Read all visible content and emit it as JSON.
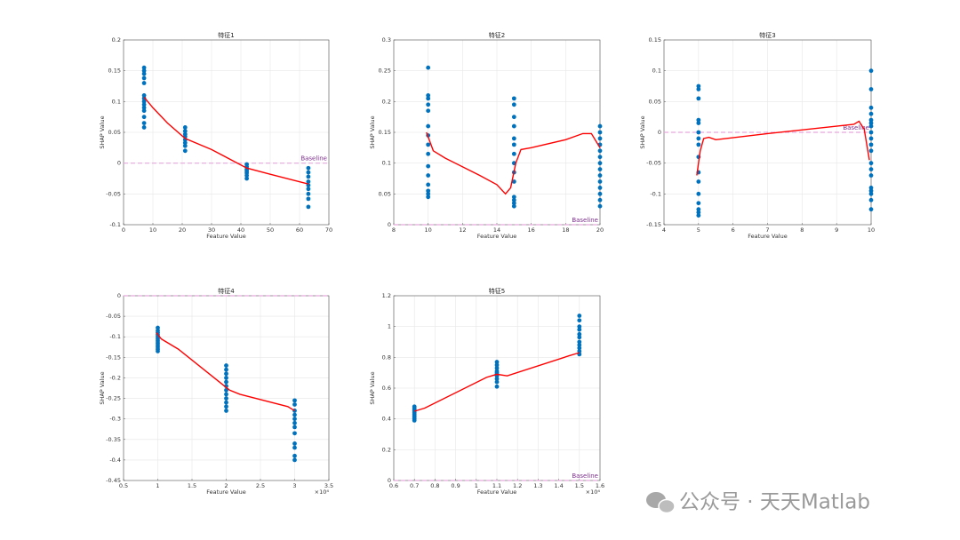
{
  "watermark": "公众号 · 天天Matlab",
  "chart_data": [
    {
      "type": "scatter",
      "title": "特征1",
      "xlabel": "Feature Value",
      "ylabel": "SHAP Value",
      "xlim": [
        0,
        70
      ],
      "xticks": [
        0,
        10,
        20,
        30,
        40,
        50,
        60,
        70
      ],
      "ylim": [
        -0.1,
        0.2
      ],
      "yticks": [
        -0.1,
        -0.05,
        0,
        0.05,
        0.1,
        0.15,
        0.2
      ],
      "grid": true,
      "scatter": {
        "color": "#0072bd",
        "x": [
          7,
          7,
          7,
          7,
          7,
          7,
          7,
          7,
          7,
          7,
          7,
          7,
          7,
          7,
          21,
          21,
          21,
          21,
          21,
          21,
          21,
          21,
          42,
          42,
          42,
          42,
          42,
          42,
          42,
          63,
          63,
          63,
          63,
          63,
          63,
          63,
          63,
          63
        ],
        "y": [
          0.155,
          0.15,
          0.145,
          0.138,
          0.13,
          0.11,
          0.105,
          0.1,
          0.095,
          0.09,
          0.085,
          0.075,
          0.065,
          0.058,
          0.058,
          0.052,
          0.047,
          0.043,
          0.038,
          0.033,
          0.028,
          0.02,
          -0.002,
          -0.006,
          -0.01,
          -0.013,
          -0.016,
          -0.02,
          -0.025,
          -0.008,
          -0.015,
          -0.022,
          -0.03,
          -0.036,
          -0.042,
          -0.05,
          -0.058,
          -0.071
        ]
      },
      "curve": {
        "color": "#ff0000",
        "x": [
          7,
          10,
          15,
          21,
          30,
          42,
          50,
          63
        ],
        "y": [
          0.107,
          0.09,
          0.065,
          0.04,
          0.022,
          -0.008,
          -0.018,
          -0.034
        ]
      },
      "baseline": {
        "value": 0,
        "label": "Baseline",
        "line_color": "#e6a8dc",
        "label_color": "#7e2f8e"
      }
    },
    {
      "type": "scatter",
      "title": "特征2",
      "xlabel": "Feature Value",
      "ylabel": "SHAP Value",
      "xlim": [
        8,
        20
      ],
      "xticks": [
        8,
        10,
        12,
        14,
        16,
        18,
        20
      ],
      "ylim": [
        0,
        0.3
      ],
      "yticks": [
        0,
        0.05,
        0.1,
        0.15,
        0.2,
        0.25,
        0.3
      ],
      "grid": true,
      "scatter": {
        "color": "#0072bd",
        "x": [
          10,
          10,
          10,
          10,
          10,
          10,
          10,
          10,
          10,
          10,
          10,
          10,
          10,
          10,
          10,
          15,
          15,
          15,
          15,
          15,
          15,
          15,
          15,
          15,
          15,
          15,
          15,
          15,
          15,
          20,
          20,
          20,
          20,
          20,
          20,
          20,
          20,
          20,
          20,
          20,
          20,
          20,
          20
        ],
        "y": [
          0.255,
          0.21,
          0.205,
          0.195,
          0.185,
          0.16,
          0.145,
          0.13,
          0.115,
          0.095,
          0.08,
          0.065,
          0.055,
          0.05,
          0.045,
          0.205,
          0.195,
          0.175,
          0.16,
          0.14,
          0.13,
          0.115,
          0.1,
          0.085,
          0.07,
          0.045,
          0.04,
          0.035,
          0.03,
          0.16,
          0.15,
          0.14,
          0.13,
          0.12,
          0.11,
          0.1,
          0.09,
          0.08,
          0.07,
          0.06,
          0.05,
          0.04,
          0.03
        ]
      },
      "curve": {
        "color": "#ff0000",
        "x": [
          9.9,
          10.3,
          11,
          13,
          14,
          14.5,
          14.8,
          15.1,
          15.4,
          16,
          18,
          19,
          19.5,
          20
        ],
        "y": [
          0.15,
          0.12,
          0.108,
          0.08,
          0.065,
          0.05,
          0.06,
          0.1,
          0.122,
          0.125,
          0.138,
          0.148,
          0.148,
          0.125
        ]
      },
      "baseline": {
        "value": 0,
        "label": "Baseline",
        "line_color": "#e6a8dc",
        "label_color": "#7e2f8e"
      }
    },
    {
      "type": "scatter",
      "title": "特征3",
      "xlabel": "Feature Value",
      "ylabel": "SHAP Value",
      "xlim": [
        4,
        10
      ],
      "xticks": [
        4,
        5,
        6,
        7,
        8,
        9,
        10
      ],
      "ylim": [
        -0.15,
        0.15
      ],
      "yticks": [
        -0.15,
        -0.1,
        -0.05,
        0,
        0.05,
        0.1,
        0.15
      ],
      "grid": true,
      "scatter": {
        "color": "#0072bd",
        "x": [
          5,
          5,
          5,
          5,
          5,
          5,
          5,
          5,
          5,
          5,
          5,
          5,
          5,
          5,
          5,
          5,
          10,
          10,
          10,
          10,
          10,
          10,
          10,
          10,
          10,
          10,
          10,
          10,
          10,
          10,
          10,
          10,
          10,
          10,
          10
        ],
        "y": [
          0.075,
          0.07,
          0.055,
          0.02,
          0.015,
          0,
          -0.01,
          -0.02,
          -0.04,
          -0.065,
          -0.08,
          -0.1,
          -0.115,
          -0.125,
          -0.13,
          -0.135,
          0.1,
          0.07,
          0.04,
          0.03,
          0.02,
          0.015,
          0.01,
          0,
          -0.01,
          -0.02,
          -0.03,
          -0.05,
          -0.06,
          -0.07,
          -0.09,
          -0.095,
          -0.1,
          -0.11,
          -0.125
        ]
      },
      "curve": {
        "color": "#ff0000",
        "x": [
          4.95,
          5.05,
          5.15,
          5.3,
          5.5,
          7,
          9,
          9.5,
          9.65,
          9.8,
          9.95
        ],
        "y": [
          -0.07,
          -0.03,
          -0.01,
          -0.008,
          -0.012,
          -0.002,
          0.01,
          0.013,
          0.018,
          0.005,
          -0.045
        ]
      },
      "baseline": {
        "value": 0,
        "label": "Baseline",
        "line_color": "#e6a8dc",
        "label_color": "#7e2f8e"
      }
    },
    {
      "type": "scatter",
      "title": "特征4",
      "xlabel": "Feature Value",
      "ylabel": "SHAP Value",
      "x_exponent_label": "×10⁴",
      "xlim": [
        0.5,
        3.5
      ],
      "xticks": [
        0.5,
        1,
        1.5,
        2,
        2.5,
        3,
        3.5
      ],
      "ylim": [
        -0.45,
        0
      ],
      "yticks": [
        -0.45,
        -0.4,
        -0.35,
        -0.3,
        -0.25,
        -0.2,
        -0.15,
        -0.1,
        -0.05,
        0
      ],
      "grid": true,
      "scatter": {
        "color": "#0072bd",
        "x": [
          1,
          1,
          1,
          1,
          1,
          1,
          1,
          1,
          1,
          1,
          1,
          1,
          2,
          2,
          2,
          2,
          2,
          2,
          2,
          2,
          2,
          2,
          2,
          2,
          3,
          3,
          3,
          3,
          3,
          3,
          3,
          3,
          3,
          3,
          3,
          3
        ],
        "y": [
          -0.078,
          -0.085,
          -0.09,
          -0.095,
          -0.1,
          -0.105,
          -0.11,
          -0.115,
          -0.12,
          -0.125,
          -0.13,
          -0.135,
          -0.17,
          -0.18,
          -0.19,
          -0.2,
          -0.21,
          -0.22,
          -0.23,
          -0.24,
          -0.25,
          -0.26,
          -0.27,
          -0.28,
          -0.255,
          -0.265,
          -0.28,
          -0.29,
          -0.3,
          -0.31,
          -0.32,
          -0.335,
          -0.36,
          -0.37,
          -0.39,
          -0.4
        ]
      },
      "curve": {
        "color": "#ff0000",
        "x": [
          0.98,
          1.05,
          1.3,
          1.9,
          2.05,
          2.2,
          2.9,
          3.0
        ],
        "y": [
          -0.09,
          -0.105,
          -0.13,
          -0.21,
          -0.23,
          -0.24,
          -0.27,
          -0.28
        ]
      },
      "baseline": {
        "value": 0,
        "line_color": "#e6a8dc"
      }
    },
    {
      "type": "scatter",
      "title": "特征5",
      "xlabel": "Feature Value",
      "ylabel": "SHAP Value",
      "x_exponent_label": "×10⁴",
      "xlim": [
        0.6,
        1.6
      ],
      "xticks": [
        0.6,
        0.7,
        0.8,
        0.9,
        1,
        1.1,
        1.2,
        1.3,
        1.4,
        1.5,
        1.6
      ],
      "ylim": [
        0,
        1.2
      ],
      "yticks": [
        0,
        0.2,
        0.4,
        0.6,
        0.8,
        1,
        1.2
      ],
      "grid": true,
      "scatter": {
        "color": "#0072bd",
        "x": [
          0.7,
          0.7,
          0.7,
          0.7,
          0.7,
          0.7,
          0.7,
          0.7,
          0.7,
          0.7,
          1.1,
          1.1,
          1.1,
          1.1,
          1.1,
          1.1,
          1.1,
          1.1,
          1.1,
          1.1,
          1.5,
          1.5,
          1.5,
          1.5,
          1.5,
          1.5,
          1.5,
          1.5,
          1.5,
          1.5,
          1.5
        ],
        "y": [
          0.48,
          0.47,
          0.46,
          0.45,
          0.44,
          0.43,
          0.42,
          0.41,
          0.4,
          0.39,
          0.77,
          0.75,
          0.73,
          0.71,
          0.7,
          0.69,
          0.68,
          0.66,
          0.64,
          0.61,
          1.07,
          1.04,
          1.0,
          0.98,
          0.95,
          0.93,
          0.9,
          0.88,
          0.86,
          0.84,
          0.82
        ]
      },
      "curve": {
        "color": "#ff0000",
        "x": [
          0.7,
          0.75,
          1.05,
          1.1,
          1.15,
          1.45,
          1.5
        ],
        "y": [
          0.45,
          0.47,
          0.67,
          0.69,
          0.68,
          0.81,
          0.83
        ]
      },
      "baseline": {
        "value": 0,
        "label": "Baseline",
        "line_color": "#e6a8dc",
        "label_color": "#7e2f8e"
      }
    }
  ]
}
